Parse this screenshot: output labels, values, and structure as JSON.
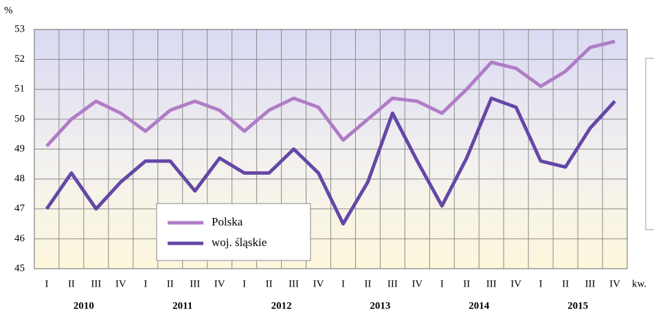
{
  "chart_data": {
    "type": "line",
    "y_unit": "%",
    "x_label": "kw.",
    "categories": [
      "I",
      "II",
      "III",
      "IV",
      "I",
      "II",
      "III",
      "IV",
      "I",
      "II",
      "III",
      "IV",
      "I",
      "II",
      "III",
      "IV",
      "I",
      "II",
      "III",
      "IV",
      "I",
      "II",
      "III",
      "IV"
    ],
    "years": [
      "2010",
      "2011",
      "2012",
      "2013",
      "2014",
      "2015"
    ],
    "series": [
      {
        "name": "Polska",
        "color": "#b07cc6",
        "values": [
          49.1,
          50.0,
          50.6,
          50.2,
          49.6,
          50.3,
          50.6,
          50.3,
          49.6,
          50.3,
          50.7,
          50.4,
          49.3,
          50.0,
          50.7,
          50.6,
          50.2,
          51.0,
          51.9,
          51.7,
          51.1,
          51.6,
          52.4,
          52.6
        ]
      },
      {
        "name": "woj. śląskie",
        "color": "#6447a6",
        "values": [
          47.0,
          48.2,
          47.0,
          47.9,
          48.6,
          48.6,
          47.6,
          48.7,
          48.2,
          48.2,
          49.0,
          48.2,
          46.5,
          47.9,
          50.2,
          48.6,
          47.1,
          48.7,
          50.7,
          50.4,
          48.6,
          48.4,
          49.7,
          50.6
        ]
      }
    ],
    "ylim": [
      45,
      53
    ],
    "yticks": [
      45,
      46,
      47,
      48,
      49,
      50,
      51,
      52,
      53
    ],
    "grid": true
  }
}
